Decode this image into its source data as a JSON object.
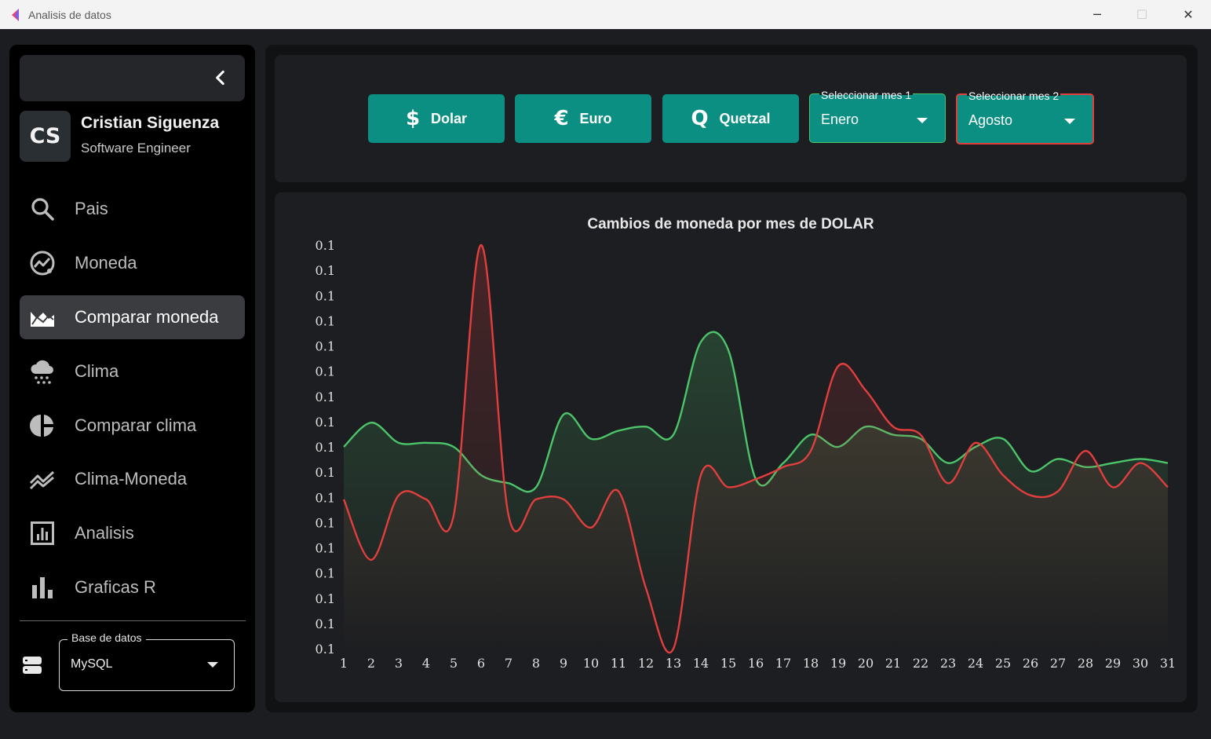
{
  "window": {
    "title": "Analisis de datos",
    "controls": {
      "minimize": "─",
      "maximize": "☐",
      "close": "✕"
    }
  },
  "sidebar": {
    "collapse_icon": "chevron-left-icon",
    "profile": {
      "initials": "CS",
      "name": "Cristian Siguenza",
      "role": "Software Engineer"
    },
    "items": [
      {
        "label": "Pais",
        "icon": "search-icon",
        "active": false
      },
      {
        "label": "Moneda",
        "icon": "trending-icon",
        "active": false
      },
      {
        "label": "Comparar moneda",
        "icon": "area-chart-icon",
        "active": true
      },
      {
        "label": "Clima",
        "icon": "cloud-snow-icon",
        "active": false
      },
      {
        "label": "Comparar clima",
        "icon": "pie-chart-icon",
        "active": false
      },
      {
        "label": "Clima-Moneda",
        "icon": "multiline-chart-icon",
        "active": false
      },
      {
        "label": "Analisis",
        "icon": "analytics-icon",
        "active": false
      },
      {
        "label": "Graficas R",
        "icon": "bar-chart-icon",
        "active": false
      }
    ],
    "database": {
      "label": "Base de datos",
      "value": "MySQL",
      "icon": "storage-icon"
    }
  },
  "toolbar": {
    "buttons": [
      {
        "symbol": "$",
        "label": "Dolar"
      },
      {
        "symbol": "€",
        "label": "Euro"
      },
      {
        "symbol": "Q",
        "label": "Quetzal"
      }
    ],
    "month1": {
      "label": "Seleccionar mes 1",
      "value": "Enero"
    },
    "month2": {
      "label": "Seleccionar mes 2",
      "value": "Agosto"
    }
  },
  "colors": {
    "accent": "#0b8f82",
    "series_month1": "#4cc46a",
    "series_month2": "#e23e3e"
  },
  "chart_data": {
    "type": "line",
    "title": "Cambios de moneda por mes de DOLAR",
    "xlabel": "",
    "ylabel": "",
    "x": [
      1,
      2,
      3,
      4,
      5,
      6,
      7,
      8,
      9,
      10,
      11,
      12,
      13,
      14,
      15,
      16,
      17,
      18,
      19,
      20,
      21,
      22,
      23,
      24,
      25,
      26,
      27,
      28,
      29,
      30,
      31
    ],
    "ytick_labels": [
      "0.1",
      "0.1",
      "0.1",
      "0.1",
      "0.1",
      "0.1",
      "0.1",
      "0.1",
      "0.1",
      "0.1",
      "0.1",
      "0.1",
      "0.1",
      "0.1",
      "0.1",
      "0.1",
      "0.1"
    ],
    "ylim": [
      0,
      100
    ],
    "grid": false,
    "legend": "none",
    "area_fill": true,
    "series": [
      {
        "color": "#4cc46a",
        "values": [
          50,
          56,
          51,
          51,
          50,
          43,
          41,
          40,
          58,
          52,
          54,
          55,
          53,
          76,
          74,
          42,
          46,
          53,
          50,
          55,
          53,
          52,
          46,
          50,
          52,
          44,
          47,
          45,
          46,
          47,
          46
        ]
      },
      {
        "color": "#e23e3e",
        "values": [
          37,
          22,
          38,
          37,
          33,
          100,
          33,
          37,
          37,
          30,
          39,
          15,
          0,
          43,
          40,
          42,
          45,
          49,
          70,
          64,
          55,
          53,
          41,
          51,
          43,
          38,
          39,
          49,
          40,
          46,
          40
        ]
      }
    ]
  }
}
